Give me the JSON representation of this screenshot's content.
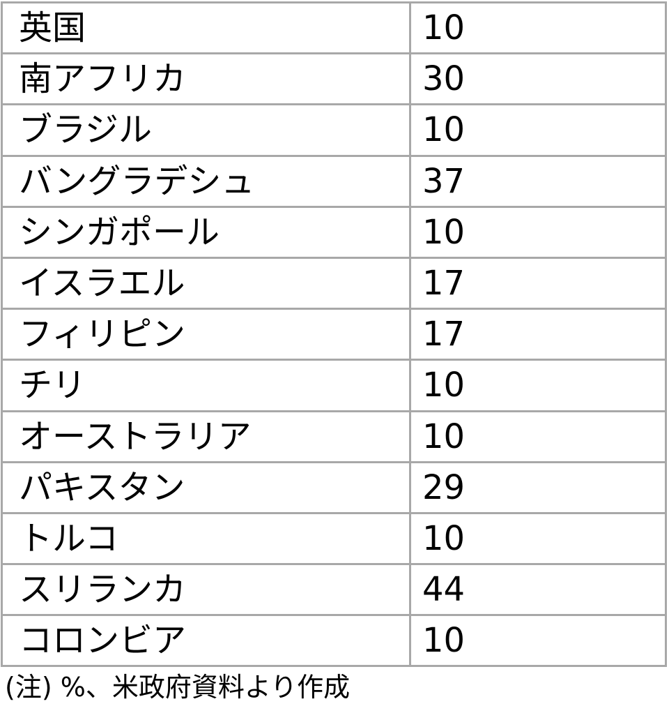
{
  "colors": {
    "background": "#ffffff",
    "border": "#a8a8a8",
    "text": "#000000"
  },
  "chart_data": {
    "type": "table",
    "unit": "%",
    "legend_position": "none",
    "grid": true,
    "rows": [
      {
        "label": "英国",
        "value": 10
      },
      {
        "label": "南アフリカ",
        "value": 30
      },
      {
        "label": "ブラジル",
        "value": 10
      },
      {
        "label": "バングラデシュ",
        "value": 37
      },
      {
        "label": "シンガポール",
        "value": 10
      },
      {
        "label": "イスラエル",
        "value": 17
      },
      {
        "label": "フィリピン",
        "value": 17
      },
      {
        "label": "チリ",
        "value": 10
      },
      {
        "label": "オーストラリア",
        "value": 10
      },
      {
        "label": "パキスタン",
        "value": 29
      },
      {
        "label": "トルコ",
        "value": 10
      },
      {
        "label": "スリランカ",
        "value": 44
      },
      {
        "label": "コロンビア",
        "value": 10
      }
    ],
    "note": "(注) %、米政府資料より作成"
  }
}
